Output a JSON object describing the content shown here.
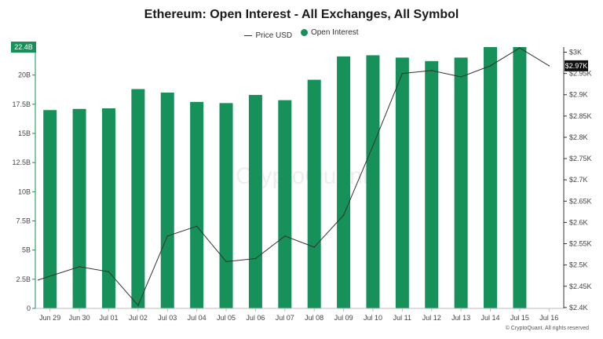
{
  "chart_data": {
    "type": "bar",
    "title": "Ethereum: Open Interest - All Exchanges, All Symbol",
    "legend": [
      {
        "name": "Price USD",
        "marker": "line",
        "color": "#333333"
      },
      {
        "name": "Open Interest",
        "marker": "dot",
        "color": "#16915a"
      }
    ],
    "legend_position": "top-center",
    "categories": [
      "Jun 29",
      "Jun 30",
      "Jul 01",
      "Jul 02",
      "Jul 03",
      "Jul 04",
      "Jul 05",
      "Jul 06",
      "Jul 07",
      "Jul 08",
      "Jul 09",
      "Jul 10",
      "Jul 11",
      "Jul 12",
      "Jul 13",
      "Jul 14",
      "Jul 15",
      "Jul 16"
    ],
    "series": [
      {
        "name": "Open Interest",
        "type": "bar",
        "axis": "left",
        "color": "#16915a",
        "values": [
          17.0,
          17.1,
          17.15,
          18.8,
          18.5,
          17.7,
          17.6,
          18.3,
          17.85,
          19.6,
          21.6,
          21.7,
          21.5,
          21.2,
          21.5,
          22.4,
          22.4,
          null
        ]
      },
      {
        "name": "Price USD",
        "type": "line",
        "axis": "right",
        "color": "#333333",
        "values": [
          2465,
          2496,
          2484,
          2405,
          2568,
          2591,
          2508,
          2515,
          2568,
          2542,
          2617,
          2780,
          2950,
          2957,
          2942,
          2968,
          3010,
          2968
        ]
      }
    ],
    "y_left": {
      "range": [
        0,
        22.4
      ],
      "ticks": [
        0,
        2.5,
        5,
        7.5,
        10,
        12.5,
        15,
        17.5,
        20
      ],
      "tick_labels": [
        "0",
        "2.5B",
        "5B",
        "7.5B",
        "10B",
        "12.5B",
        "15B",
        "17.5B",
        "20B"
      ]
    },
    "y_right": {
      "range": [
        2398,
        3012
      ],
      "ticks": [
        2400,
        2450,
        2500,
        2550,
        2600,
        2650,
        2700,
        2750,
        2800,
        2850,
        2900,
        2950,
        3000
      ],
      "tick_labels": [
        "$2.4K",
        "$2.45K",
        "$2.5K",
        "$2.55K",
        "$2.6K",
        "$2.65K",
        "$2.7K",
        "$2.75K",
        "$2.8K",
        "$2.85K",
        "$2.9K",
        "$2.95K",
        "$3K"
      ]
    },
    "current_value_labels": {
      "left": "22.4B",
      "right": "$2.97K"
    },
    "watermark": "CryptoQuant",
    "credit": "© CryptoQuant. All rights reserved",
    "grid": false
  }
}
